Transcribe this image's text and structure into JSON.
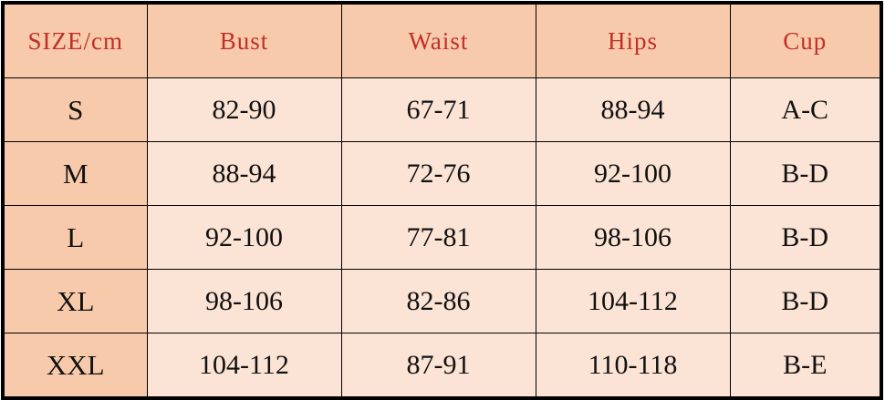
{
  "colors": {
    "header_bg": "#f7caab",
    "body_bg": "#fbe4d5",
    "header_text": "#c0302a",
    "border": "#000000"
  },
  "table": {
    "headers": [
      "SIZE/cm",
      "Bust",
      "Waist",
      "Hips",
      "Cup"
    ],
    "rows": [
      [
        "S",
        "82-90",
        "67-71",
        "88-94",
        "A-C"
      ],
      [
        "M",
        "88-94",
        "72-76",
        "92-100",
        "B-D"
      ],
      [
        "L",
        "92-100",
        "77-81",
        "98-106",
        "B-D"
      ],
      [
        "XL",
        "98-106",
        "82-86",
        "104-112",
        "B-D"
      ],
      [
        "XXL",
        "104-112",
        "87-91",
        "110-118",
        "B-E"
      ]
    ]
  }
}
